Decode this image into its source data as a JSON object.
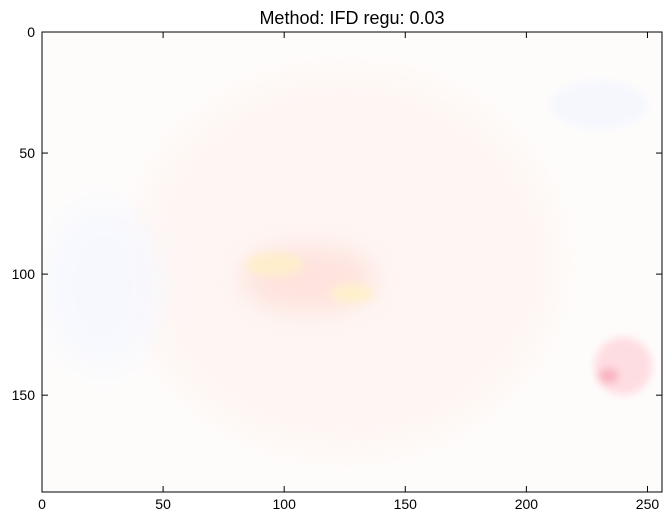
{
  "chart_data": {
    "type": "heatmap",
    "title": "Method: IFD regu: 0.03",
    "xlabel": "",
    "ylabel": "",
    "xlim": [
      0,
      256
    ],
    "ylim": [
      190,
      0
    ],
    "x_ticks": [
      0,
      50,
      100,
      150,
      200,
      250
    ],
    "y_ticks": [
      0,
      50,
      100,
      150
    ],
    "grid": false,
    "image_description_blobs": [
      {
        "x": 125,
        "y": 95,
        "rx": 90,
        "ry": 80,
        "color": "#fff3ee",
        "opacity": 0.6
      },
      {
        "x": 110,
        "y": 102,
        "rx": 28,
        "ry": 14,
        "color": "#ffdcd6",
        "opacity": 0.75
      },
      {
        "x": 96,
        "y": 96,
        "rx": 12,
        "ry": 5,
        "color": "#fff0c8",
        "opacity": 0.8
      },
      {
        "x": 128,
        "y": 108,
        "rx": 9,
        "ry": 4,
        "color": "#fff2c8",
        "opacity": 0.8
      },
      {
        "x": 240,
        "y": 138,
        "rx": 12,
        "ry": 12,
        "color": "#ffd8de",
        "opacity": 0.85
      },
      {
        "x": 234,
        "y": 142,
        "rx": 4,
        "ry": 3,
        "color": "#f4a0b0",
        "opacity": 0.7
      },
      {
        "x": 25,
        "y": 105,
        "rx": 25,
        "ry": 35,
        "color": "#f6f8ff",
        "opacity": 0.8
      },
      {
        "x": 230,
        "y": 30,
        "rx": 20,
        "ry": 10,
        "color": "#f2f5ff",
        "opacity": 0.7
      }
    ]
  }
}
